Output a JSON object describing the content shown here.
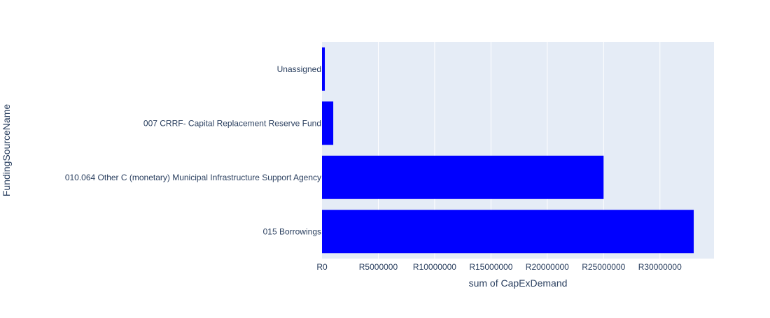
{
  "chart_data": {
    "type": "bar",
    "orientation": "horizontal",
    "categories": [
      "015 Borrowings",
      "010.064 Other C (monetary) Municipal Infrastructure Support Agency",
      "007 CRRF- Capital Replacement Reserve Fund",
      "Unassigned"
    ],
    "values": [
      33000000,
      25000000,
      1000000,
      250000
    ],
    "xlabel": "sum of CapExDemand",
    "ylabel": "FundingSourceName",
    "xlim": [
      0,
      34800000
    ],
    "xticks": [
      0,
      5000000,
      10000000,
      15000000,
      20000000,
      25000000,
      30000000
    ],
    "xtick_labels": [
      "R0",
      "R5000000",
      "R10000000",
      "R15000000",
      "R20000000",
      "R25000000",
      "R30000000"
    ],
    "grid": true,
    "colors": {
      "bar": "#0000ff",
      "plot_background": "#e5ecf6",
      "gridline": "#ffffff",
      "text": "#2a3f5f"
    }
  }
}
